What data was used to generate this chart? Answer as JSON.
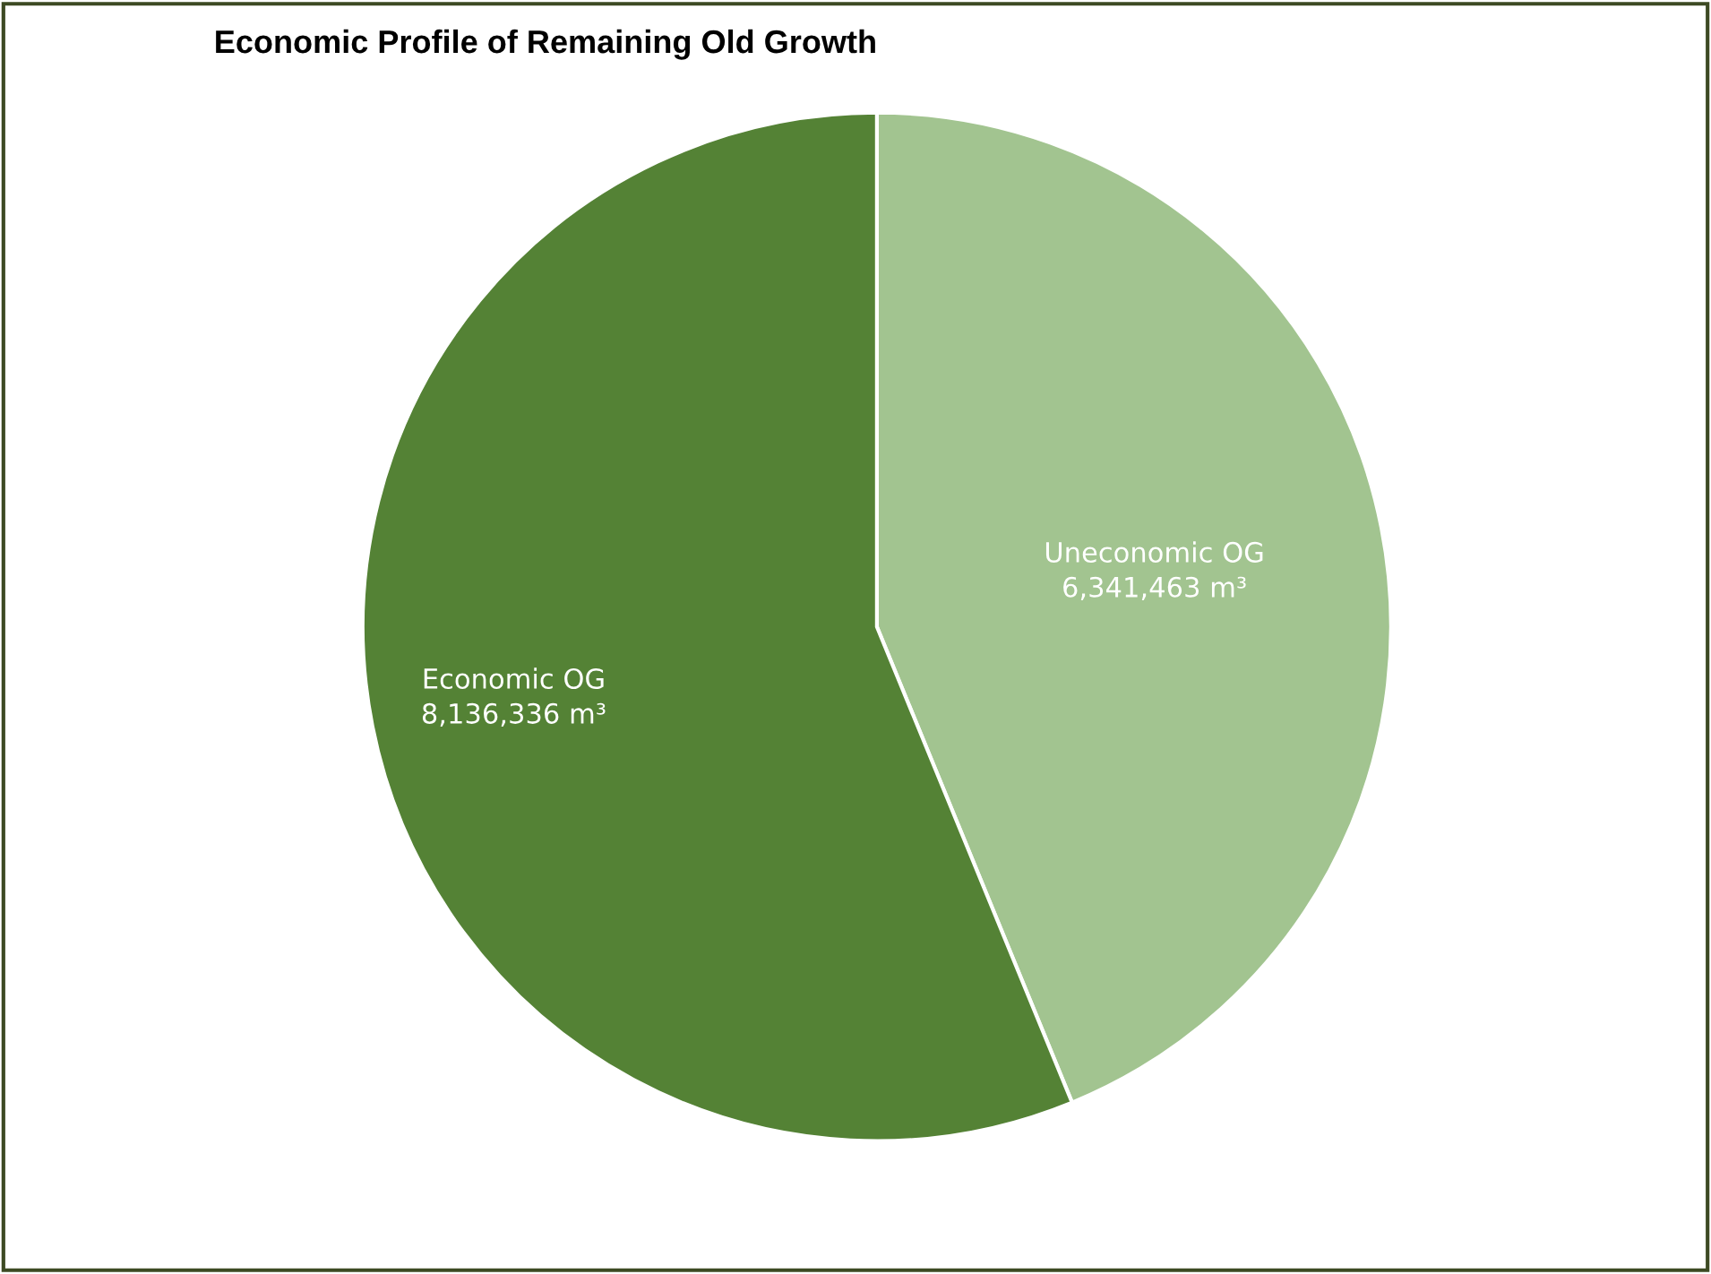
{
  "chart_data": {
    "type": "pie",
    "title": "Economic Profile of Remaining Old Growth",
    "categories": [
      "Uneconomic OG",
      "Economic OG"
    ],
    "values": [
      6341463,
      8136336
    ],
    "value_labels": [
      "6,341,463 m³",
      "8,136,336 m³"
    ],
    "colors": [
      "#a2c490",
      "#548235"
    ]
  }
}
